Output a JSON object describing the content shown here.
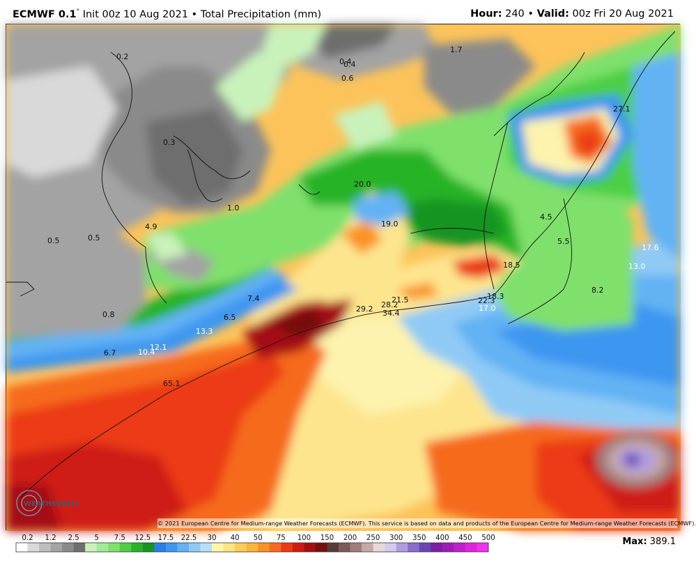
{
  "header": {
    "model": "ECMWF 0.1",
    "init": "Init 00z 10 Aug 2021",
    "field": "Total Precipitation (mm)",
    "hour_label": "Hour",
    "hour": "240",
    "valid_label": "Valid",
    "valid": "00z Fri 20 Aug 2021"
  },
  "map": {
    "value_labels": [
      "0.2",
      "0.4",
      "0.4",
      "0.6",
      "1.7",
      "0.3",
      "1.0",
      "4.9",
      "0.5",
      "0.5",
      "0.8",
      "20.0",
      "19.0",
      "27.1",
      "4.5",
      "5.5",
      "17.6",
      "13.0",
      "18.5",
      "8.2",
      "7.4",
      "6.5",
      "13.3",
      "12.1",
      "10.4",
      "6.7",
      "29.2",
      "28.2",
      "21.5",
      "34.4",
      "22.3",
      "18.3",
      "17.0",
      "65.1"
    ]
  },
  "copyright": "© 2021 European Centre for Medium-range Weather Forecasts (ECMWF). This service is based on data and products of the European Centre for Medium-range Weather Forecasts (ECMWF).",
  "logo_text": "WEATHERBELL",
  "legend": {
    "ticks": [
      "0.2",
      "1.2",
      "2.5",
      "5",
      "7.5",
      "12.5",
      "17.5",
      "22.5",
      "30",
      "40",
      "50",
      "75",
      "100",
      "150",
      "200",
      "250",
      "300",
      "350",
      "400",
      "450",
      "500"
    ],
    "colors": [
      "#ffffff",
      "#d9d9d9",
      "#bdbdbd",
      "#a3a3a3",
      "#8a8a8a",
      "#6e6e6e",
      "#c9f2bb",
      "#a2ea96",
      "#7fe06c",
      "#4ccf44",
      "#27b326",
      "#179420",
      "#2a7fe3",
      "#3d96f0",
      "#62b2f4",
      "#8fcaf5",
      "#b8def7",
      "#fdf6a6",
      "#fde484",
      "#fdcc5a",
      "#fcb43c",
      "#fb9324",
      "#f66a1d",
      "#ec3a14",
      "#cf1b14",
      "#a50f12",
      "#741010",
      "#5a3a38",
      "#7b5a58",
      "#a07c7a",
      "#c5a9a8",
      "#e8d8d8",
      "#d7c8ee",
      "#b09ce0",
      "#8a6dcc",
      "#6a45b6",
      "#7d1fa4",
      "#a01cb8",
      "#c21fcc",
      "#de24de",
      "#f032ef"
    ],
    "max_label": "Max",
    "max_value": "389.1",
    "colors_meta": [
      "ramp"
    ]
  }
}
